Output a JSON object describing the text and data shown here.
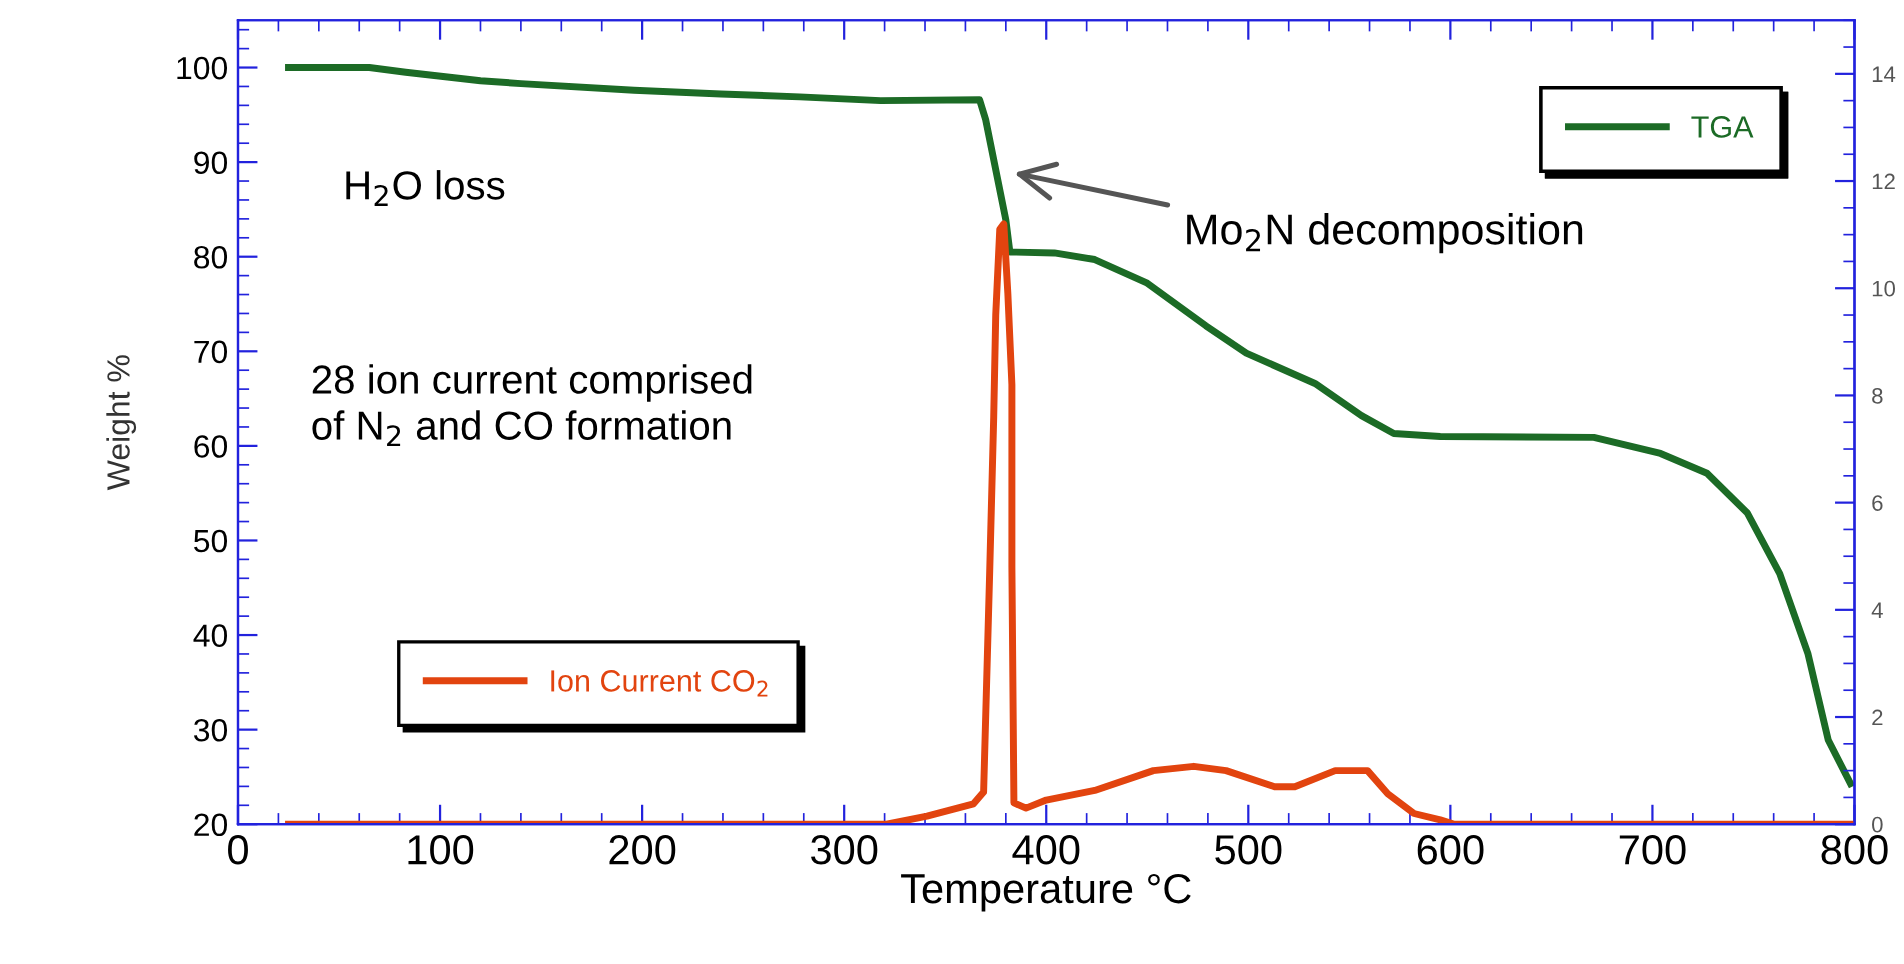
{
  "chart_data": {
    "type": "line",
    "xlabel": "Temperature °C",
    "ylabel": "Weight %",
    "xlim": [
      0,
      800
    ],
    "xticks": [
      0,
      100,
      200,
      300,
      400,
      500,
      600,
      700,
      800
    ],
    "ylim": [
      20,
      105
    ],
    "yticks": [
      20,
      30,
      40,
      50,
      60,
      70,
      80,
      90,
      100
    ],
    "y2lim": [
      0,
      15
    ],
    "y2ticks": [
      0,
      2,
      4,
      6,
      8,
      10,
      12,
      14
    ],
    "grid": false,
    "legend": "top right",
    "marker": "none",
    "line_style": "solid",
    "series": [
      {
        "name": "TGA",
        "color": "#1c6b26",
        "x": [
          25,
          65,
          83,
          120,
          140,
          196,
          239,
          278,
          318,
          367,
          370,
          380,
          382,
          404,
          424,
          450,
          479,
          499,
          533,
          556,
          572,
          595,
          671,
          704,
          727,
          747,
          763,
          777,
          787,
          798
        ],
        "values": [
          100,
          100,
          99.5,
          98.6,
          98.3,
          97.6,
          97.2,
          96.9,
          96.5,
          96.6,
          94.5,
          83.9,
          80.5,
          80.4,
          79.7,
          77.2,
          72.7,
          69.8,
          66.6,
          63.2,
          61.3,
          61.0,
          60.9,
          59.2,
          57.1,
          52.9,
          46.5,
          38.0,
          28.9,
          24.3
        ]
      },
      {
        "name": "Ion Current CO$_{2}$",
        "color": "#e2440f",
        "axis": "y2",
        "x": [
          25,
          321,
          341,
          364,
          369,
          372,
          374,
          375,
          377,
          379,
          381,
          383,
          383,
          384,
          390,
          400,
          424,
          453,
          473,
          489,
          513,
          523,
          543,
          559,
          569,
          582,
          595,
          602,
          800
        ],
        "values": [
          0,
          0,
          0.15,
          0.38,
          0.6,
          4.7,
          7.6,
          9.5,
          11.1,
          11.2,
          9.9,
          8.2,
          4.8,
          0.4,
          0.3,
          0.45,
          0.63,
          1.0,
          1.08,
          1.0,
          0.7,
          0.7,
          1.0,
          1.0,
          0.57,
          0.2,
          0.08,
          0,
          0
        ]
      }
    ],
    "annotations": [
      "H$_{2}$O loss",
      "Mo$_{2}$N decomposition",
      "28 ion current comprised\nof N$_{2}$ and CO formation"
    ]
  }
}
